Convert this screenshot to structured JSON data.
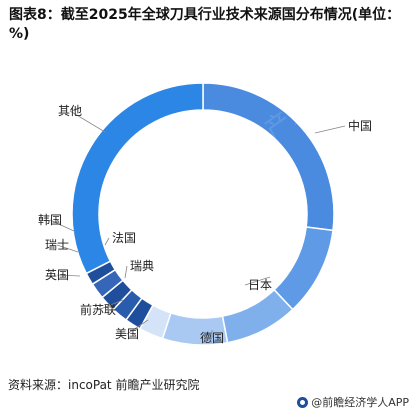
{
  "title": "图表8：截至2025年全球刀具行业技术来源国分布情况(单位：%)",
  "source": "资料来源：incoPat 前瞻产业研究院",
  "brand": "@前瞻经济学人APP",
  "watermark": "前瞻产业研究院",
  "chart_data": {
    "type": "pie",
    "donut": true,
    "title": "图表8：截至2025年全球刀具行业技术来源国分布情况(单位：%)",
    "categories": [
      "中国",
      "日本",
      "德国",
      "美国",
      "前苏联",
      "瑞典",
      "英国",
      "瑞士",
      "法国",
      "韩国",
      "其他"
    ],
    "values": [
      27,
      11,
      9,
      8,
      3,
      2,
      2,
      2,
      2,
      1.5,
      32.5
    ],
    "colors": [
      "#4a8be0",
      "#5e9ae6",
      "#7fb0ec",
      "#a9c9f3",
      "#d4e3f7",
      "#1f4e9c",
      "#2a5cae",
      "#1f4e9c",
      "#3566b8",
      "#1f4e9c",
      "#2b86e6"
    ],
    "units": "%",
    "legend": "none",
    "labels_on_slices": true
  }
}
